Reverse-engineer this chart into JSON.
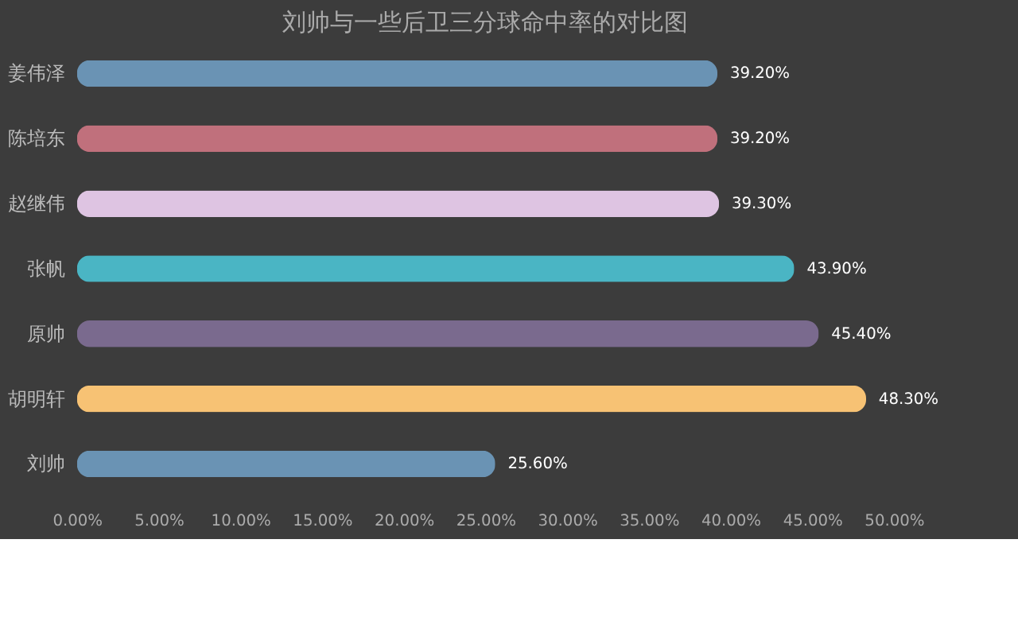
{
  "chart_data": {
    "type": "bar",
    "orientation": "horizontal",
    "title": "刘帅与一些后卫三分球命中率的对比图",
    "categories": [
      "姜伟泽",
      "陈培东",
      "赵继伟",
      "张帆",
      "原帅",
      "胡明轩",
      "刘帅"
    ],
    "values": [
      39.2,
      39.2,
      39.3,
      43.9,
      45.4,
      48.3,
      25.6
    ],
    "colors": [
      "#6a93b4",
      "#c0707c",
      "#dec4e2",
      "#4ab5c4",
      "#7a6a8e",
      "#f7c274",
      "#6a93b4"
    ],
    "value_labels": [
      "39.20%",
      "39.20%",
      "39.30%",
      "43.90%",
      "45.40%",
      "48.30%",
      "25.60%"
    ],
    "xlim": [
      0,
      50
    ],
    "xticks": [
      {
        "value": 0,
        "label": "0.00%"
      },
      {
        "value": 5,
        "label": "5.00%"
      },
      {
        "value": 10,
        "label": "10.00%"
      },
      {
        "value": 15,
        "label": "15.00%"
      },
      {
        "value": 20,
        "label": "20.00%"
      },
      {
        "value": 25,
        "label": "25.00%"
      },
      {
        "value": 30,
        "label": "30.00%"
      },
      {
        "value": 35,
        "label": "35.00%"
      },
      {
        "value": 40,
        "label": "40.00%"
      },
      {
        "value": 45,
        "label": "45.00%"
      },
      {
        "value": 50,
        "label": "50.00%"
      }
    ],
    "grid": false
  }
}
